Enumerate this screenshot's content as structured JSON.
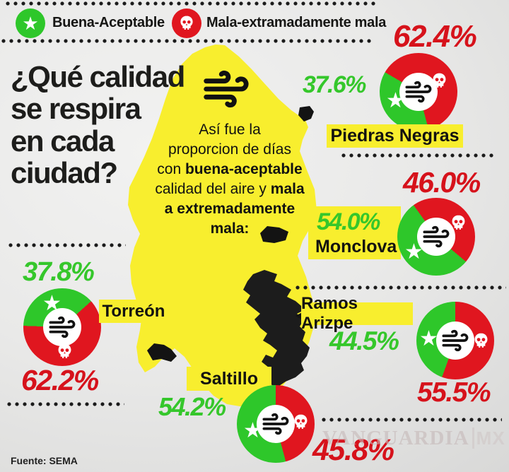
{
  "colors": {
    "good": "#2ec72a",
    "bad": "#e0161f",
    "good_text": "#35c72b",
    "bad_text": "#d6121b",
    "yellow": "#f8ee2e",
    "ink": "#1d1d1b"
  },
  "icons": {
    "star": "★",
    "skull": "skull-icon",
    "wind": "wind-icon"
  },
  "legend": {
    "good": "Buena-Aceptable",
    "bad": "Mala-extramadamente mala"
  },
  "title": {
    "line1": "¿Qué calidad",
    "line2": "se respira",
    "line3": "en cada",
    "line4": "ciudad?"
  },
  "note": {
    "full": "Así fue la proporcion de días con buena-aceptable calidad del aire y mala a extremadamente mala:",
    "lines": [
      [
        {
          "t": "Así fue la",
          "b": 0
        }
      ],
      [
        {
          "t": "proporcion de días",
          "b": 0
        }
      ],
      [
        {
          "t": "con ",
          "b": 0
        },
        {
          "t": "buena-aceptable",
          "b": 1
        }
      ],
      [
        {
          "t": "calidad del aire y ",
          "b": 0
        },
        {
          "t": "mala",
          "b": 1
        }
      ],
      [
        {
          "t": "a extremadamente",
          "b": 1
        }
      ],
      [
        {
          "t": "mala:",
          "b": 1
        }
      ]
    ]
  },
  "source": "Fuente: SEMA",
  "watermark": {
    "name": "VANGUARDIA",
    "suffix": "MX"
  },
  "chart_data": {
    "type": "pie",
    "title": "¿Qué calidad se respira en cada ciudad?",
    "note": "Así fue la proporcion de días con buena-aceptable calidad del aire y mala a extremadamente mala:",
    "unit": "% of days",
    "legend": [
      "Buena-Aceptable",
      "Mala-extramadamente mala"
    ],
    "series_colors": {
      "buena_aceptable": "#2ec72a",
      "mala_extremadamente_mala": "#e0161f"
    },
    "cities": [
      {
        "name": "Piedras Negras",
        "good": 37.6,
        "bad": 62.4,
        "good_pct": "37.6%",
        "bad_pct": "62.4%"
      },
      {
        "name": "Monclova",
        "good": 54.0,
        "bad": 46.0,
        "good_pct": "54.0%",
        "bad_pct": "46.0%"
      },
      {
        "name": "Torreón",
        "good": 37.8,
        "bad": 62.2,
        "good_pct": "37.8%",
        "bad_pct": "62.2%"
      },
      {
        "name": "Ramos Arizpe",
        "good": 44.5,
        "bad": 55.5,
        "good_pct": "44.5%",
        "bad_pct": "55.5%"
      },
      {
        "name": "Saltillo",
        "good": 54.2,
        "bad": 45.8,
        "good_pct": "54.2%",
        "bad_pct": "45.8%"
      }
    ],
    "source": "SEMA"
  }
}
